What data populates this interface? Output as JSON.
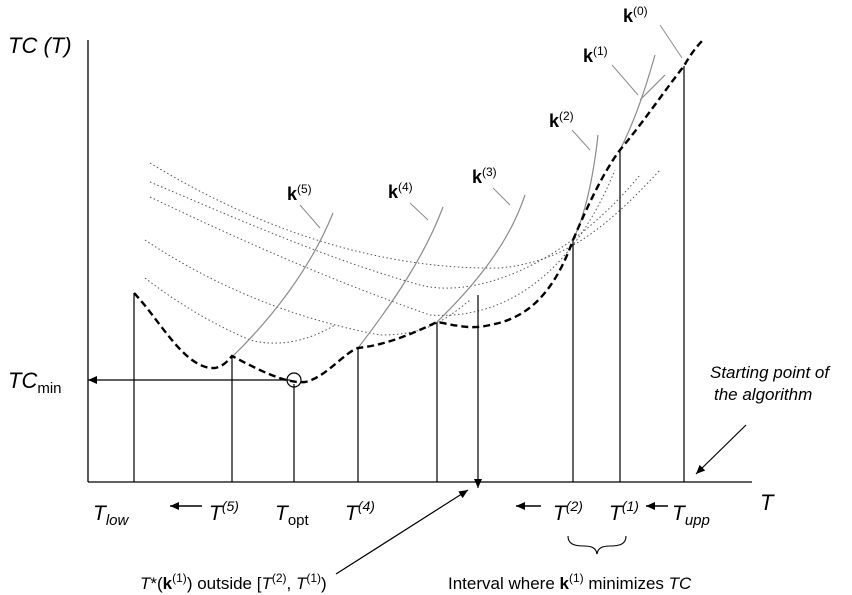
{
  "axes": {
    "y_label": "TC (T)",
    "x_label": "T"
  },
  "tc_min": {
    "base": "TC",
    "sub": "min"
  },
  "ticks": [
    {
      "id": "t-low",
      "base": "T",
      "sup": "",
      "sub": "low",
      "base_italic": true,
      "sub_italic": true
    },
    {
      "id": "t5",
      "base": "T",
      "sup": "(5)",
      "sub": "",
      "base_italic": true,
      "sup_italic": true
    },
    {
      "id": "t-opt",
      "base": "T",
      "sup": "",
      "sub": "opt",
      "base_italic": true,
      "sub_italic": false
    },
    {
      "id": "t4",
      "base": "T",
      "sup": "(4)",
      "sub": "",
      "base_italic": true,
      "sup_italic": true
    },
    {
      "id": "t2",
      "base": "T",
      "sup": "(2)",
      "sub": "",
      "base_italic": true,
      "sup_italic": true
    },
    {
      "id": "t1",
      "base": "T",
      "sup": "(1)",
      "sub": "",
      "base_italic": true,
      "sup_italic": true
    },
    {
      "id": "t-upp",
      "base": "T",
      "sup": "",
      "sub": "upp",
      "base_italic": true,
      "sub_italic": true
    }
  ],
  "curve_labels": [
    {
      "id": "k0",
      "base": "k",
      "sup": "(0)"
    },
    {
      "id": "k1",
      "base": "k",
      "sup": "(1)"
    },
    {
      "id": "k2",
      "base": "k",
      "sup": "(2)"
    },
    {
      "id": "k3",
      "base": "k",
      "sup": "(3)"
    },
    {
      "id": "k4",
      "base": "k",
      "sup": "(4)"
    },
    {
      "id": "k5",
      "base": "k",
      "sup": "(5)"
    }
  ],
  "annotations": {
    "start_line1": "Starting point of",
    "start_line2": "the algorithm",
    "outside": {
      "t": "T",
      "star": "*(",
      "k": "k",
      "ksup": "(1)",
      "mid": ") outside [",
      "t2": "T",
      "t2sup": "(2)",
      "comma": ", ",
      "t1": "T",
      "t1sup": "(1)",
      "end": ")"
    },
    "interval": {
      "pre": "Interval where ",
      "k": "k",
      "ksup": "(1)",
      "mid": " minimizes ",
      "tc": "TC"
    }
  },
  "colors": {
    "ink": "#000000",
    "curve_gray": "#8c8c8c",
    "curve_dotted": "#555555"
  }
}
